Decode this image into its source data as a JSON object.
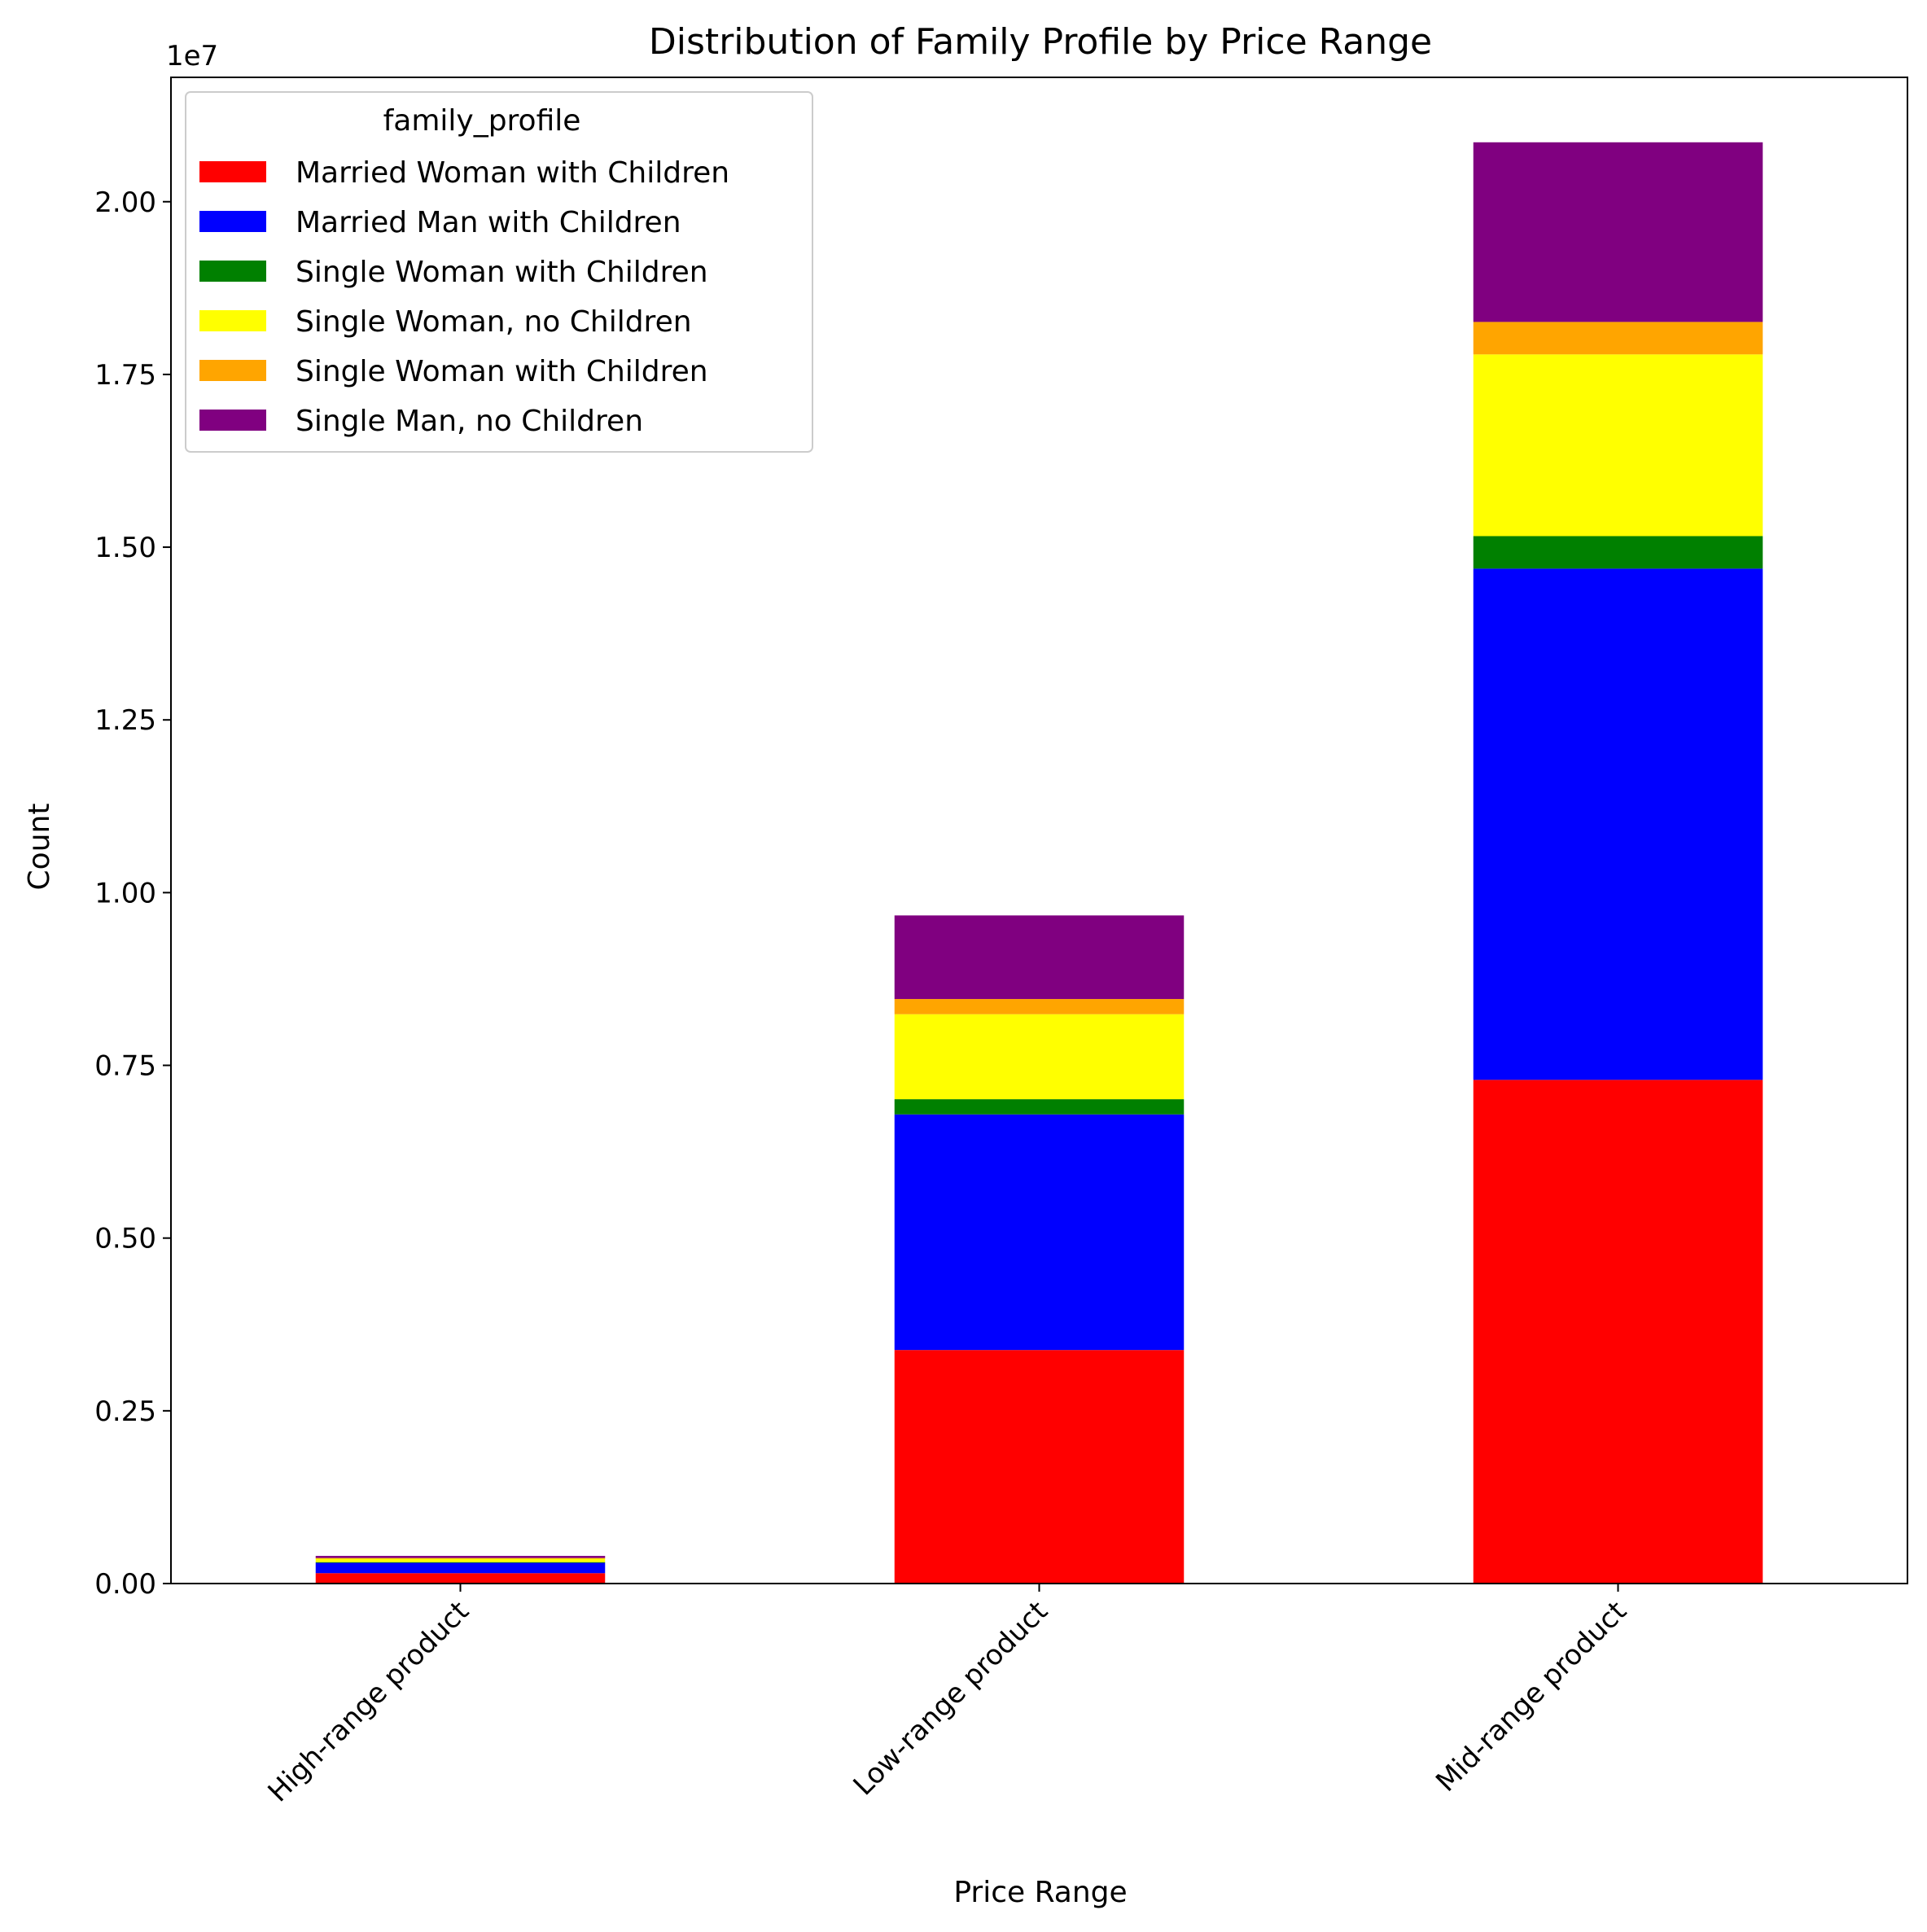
{
  "chart_data": {
    "type": "bar",
    "stacked": true,
    "title": "Distribution of Family Profile by Price Range",
    "xlabel": "Price Range",
    "ylabel": "Count",
    "offset_text": "1e7",
    "ylim": [
      0,
      2.18
    ],
    "yticks": [
      "0.00",
      "0.25",
      "0.50",
      "0.75",
      "1.00",
      "1.25",
      "1.50",
      "1.75",
      "2.00"
    ],
    "ytick_values": [
      0,
      0.25,
      0.5,
      0.75,
      1.0,
      1.25,
      1.5,
      1.75,
      2.0
    ],
    "categories": [
      "High-range product",
      "Low-range product",
      "Mid-range product"
    ],
    "grid": false,
    "legend": {
      "title": "family_profile",
      "position": "upper-left"
    },
    "series": [
      {
        "name": "Married Woman with Children",
        "color": "#ff0000",
        "values": [
          0.015,
          0.338,
          0.729
        ]
      },
      {
        "name": "Married Man with Children",
        "color": "#0000ff",
        "values": [
          0.015,
          0.341,
          0.74
        ]
      },
      {
        "name": "Single Woman with Children",
        "color": "#008000",
        "values": [
          0.001,
          0.022,
          0.047
        ]
      },
      {
        "name": "Single Woman, no Children",
        "color": "#ffff00",
        "values": [
          0.005,
          0.123,
          0.263
        ]
      },
      {
        "name": "Single Woman with Children",
        "color": "#ffa500",
        "values": [
          0.001,
          0.022,
          0.047
        ]
      },
      {
        "name": "Single Man, no Children",
        "color": "#800080",
        "values": [
          0.003,
          0.121,
          0.26
        ]
      }
    ]
  }
}
